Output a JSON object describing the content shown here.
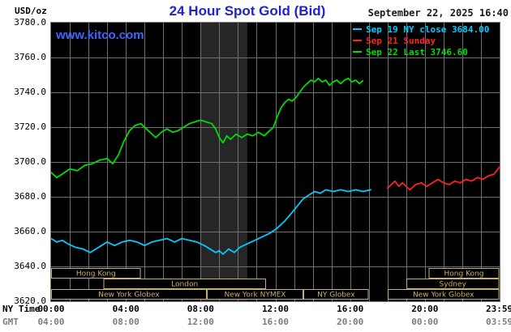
{
  "header": {
    "units_label": "USD/oz",
    "title": "24 Hour Spot Gold (Bid)",
    "title_color": "#2222cc",
    "datetime": "September 22, 2025 16:40",
    "watermark": "www.kitco.com",
    "watermark_color": "#3b66ff"
  },
  "legend": {
    "items": [
      {
        "label": "Sep 19 NY close 3684.00",
        "color": "#00ccff"
      },
      {
        "label": "Sep 21 Sunday",
        "color": "#ff2222"
      },
      {
        "label": "Sep 22 Last 3746.60",
        "color": "#00dd00"
      }
    ]
  },
  "axes": {
    "y_ticks": [
      "3780.0",
      "3760.0",
      "3740.0",
      "3720.0",
      "3700.0",
      "3680.0",
      "3660.0",
      "3640.0",
      "3620.0"
    ],
    "x_ny_label": "NY Time",
    "x_gmt_label": "GMT",
    "x_ticks_ny": [
      "00:00",
      "04:00",
      "08:00",
      "12:00",
      "16:00",
      "20:00",
      "23:59"
    ],
    "x_ticks_gmt": [
      "04:00",
      "08:00",
      "12:00",
      "16:00",
      "20:00",
      "00:00",
      "03:59"
    ],
    "tick_hours": [
      0,
      4,
      8,
      12,
      16,
      20,
      23.983
    ]
  },
  "sessions": {
    "box_color": "#c7b069",
    "rows": [
      [
        {
          "label": "Hong Kong",
          "start": 0,
          "end": 4.8
        },
        {
          "label": "Hong Kong",
          "start": 20.2,
          "end": 23.983
        }
      ],
      [
        {
          "label": "London",
          "start": 2.8,
          "end": 11.5
        },
        {
          "label": "Sydney",
          "start": 19.0,
          "end": 23.983
        }
      ],
      [
        {
          "label": "New York Globex",
          "start": 0,
          "end": 8.33
        },
        {
          "label": "New York NYMEX",
          "start": 8.33,
          "end": 13.5
        },
        {
          "label": "NY Globex",
          "start": 13.5,
          "end": 17.0
        },
        {
          "label": "New York Globex",
          "start": 18.0,
          "end": 23.983
        }
      ]
    ]
  },
  "chart_data": {
    "type": "line",
    "title": "24 Hour Spot Gold (Bid)",
    "ylabel": "USD/oz",
    "ylim": [
      3620,
      3780
    ],
    "xlim_hours": [
      0,
      24
    ],
    "y_grid_step": 20,
    "x_grid_step_hours": 1,
    "plot_bg": "#000000",
    "grid_color": "#6f6f6f",
    "nymex_band": {
      "start_hour": 8.0,
      "end_hour": 10.5,
      "color": "#262626"
    },
    "series": [
      {
        "name": "Sep 19 NY close",
        "key": "sep19-ny-close",
        "color": "#00ccff",
        "last_value": 3684.0,
        "points": [
          [
            0,
            3656
          ],
          [
            0.3,
            3654
          ],
          [
            0.6,
            3655
          ],
          [
            0.9,
            3653
          ],
          [
            1.3,
            3651
          ],
          [
            1.7,
            3650
          ],
          [
            2.1,
            3648
          ],
          [
            2.4,
            3650
          ],
          [
            2.7,
            3652
          ],
          [
            3.0,
            3654
          ],
          [
            3.4,
            3652
          ],
          [
            3.8,
            3654
          ],
          [
            4.2,
            3655
          ],
          [
            4.6,
            3654
          ],
          [
            5.0,
            3652
          ],
          [
            5.4,
            3654
          ],
          [
            5.8,
            3655
          ],
          [
            6.2,
            3656
          ],
          [
            6.6,
            3654
          ],
          [
            7.0,
            3656
          ],
          [
            7.4,
            3655
          ],
          [
            7.8,
            3654
          ],
          [
            8.2,
            3652
          ],
          [
            8.5,
            3650
          ],
          [
            8.8,
            3648
          ],
          [
            9.0,
            3649
          ],
          [
            9.2,
            3647
          ],
          [
            9.5,
            3650
          ],
          [
            9.8,
            3648
          ],
          [
            10.1,
            3651
          ],
          [
            10.5,
            3653
          ],
          [
            10.9,
            3655
          ],
          [
            11.3,
            3657
          ],
          [
            11.7,
            3659
          ],
          [
            12.1,
            3662
          ],
          [
            12.5,
            3666
          ],
          [
            12.9,
            3671
          ],
          [
            13.2,
            3675
          ],
          [
            13.5,
            3679
          ],
          [
            13.8,
            3681
          ],
          [
            14.1,
            3683
          ],
          [
            14.4,
            3682
          ],
          [
            14.7,
            3684
          ],
          [
            15.1,
            3683
          ],
          [
            15.5,
            3684
          ],
          [
            15.9,
            3683
          ],
          [
            16.3,
            3684
          ],
          [
            16.7,
            3683
          ],
          [
            17.1,
            3684
          ]
        ]
      },
      {
        "name": "Sep 21 Sunday",
        "key": "sep21-sunday",
        "color": "#ff2222",
        "points": [
          [
            18.0,
            3685
          ],
          [
            18.2,
            3687
          ],
          [
            18.4,
            3689
          ],
          [
            18.6,
            3686
          ],
          [
            18.8,
            3688
          ],
          [
            19.0,
            3686
          ],
          [
            19.2,
            3684
          ],
          [
            19.5,
            3687
          ],
          [
            19.8,
            3688
          ],
          [
            20.1,
            3686
          ],
          [
            20.4,
            3688
          ],
          [
            20.7,
            3690
          ],
          [
            21.0,
            3688
          ],
          [
            21.3,
            3687
          ],
          [
            21.6,
            3689
          ],
          [
            21.9,
            3688
          ],
          [
            22.2,
            3690
          ],
          [
            22.5,
            3689
          ],
          [
            22.8,
            3691
          ],
          [
            23.1,
            3690
          ],
          [
            23.4,
            3692
          ],
          [
            23.7,
            3693
          ],
          [
            23.983,
            3697
          ]
        ]
      },
      {
        "name": "Sep 22 Last",
        "key": "sep22-last",
        "color": "#00dd00",
        "last_value": 3746.6,
        "points": [
          [
            0,
            3694
          ],
          [
            0.3,
            3691
          ],
          [
            0.6,
            3693
          ],
          [
            1.0,
            3696
          ],
          [
            1.4,
            3695
          ],
          [
            1.8,
            3698
          ],
          [
            2.2,
            3699
          ],
          [
            2.6,
            3701
          ],
          [
            3.0,
            3702
          ],
          [
            3.3,
            3699
          ],
          [
            3.6,
            3704
          ],
          [
            3.9,
            3712
          ],
          [
            4.2,
            3718
          ],
          [
            4.5,
            3721
          ],
          [
            4.8,
            3722
          ],
          [
            5.1,
            3719
          ],
          [
            5.4,
            3716
          ],
          [
            5.6,
            3714
          ],
          [
            5.9,
            3717
          ],
          [
            6.2,
            3719
          ],
          [
            6.5,
            3717
          ],
          [
            6.8,
            3718
          ],
          [
            7.1,
            3720
          ],
          [
            7.4,
            3722
          ],
          [
            7.7,
            3723
          ],
          [
            8.0,
            3724
          ],
          [
            8.3,
            3723
          ],
          [
            8.6,
            3722
          ],
          [
            8.8,
            3719
          ],
          [
            9.0,
            3714
          ],
          [
            9.2,
            3711
          ],
          [
            9.4,
            3715
          ],
          [
            9.6,
            3713
          ],
          [
            9.9,
            3716
          ],
          [
            10.2,
            3714
          ],
          [
            10.5,
            3716
          ],
          [
            10.8,
            3715
          ],
          [
            11.1,
            3717
          ],
          [
            11.4,
            3715
          ],
          [
            11.7,
            3718
          ],
          [
            11.9,
            3720
          ],
          [
            12.1,
            3726
          ],
          [
            12.3,
            3731
          ],
          [
            12.5,
            3734
          ],
          [
            12.7,
            3736
          ],
          [
            12.9,
            3735
          ],
          [
            13.1,
            3737
          ],
          [
            13.3,
            3740
          ],
          [
            13.5,
            3743
          ],
          [
            13.7,
            3745
          ],
          [
            13.9,
            3747
          ],
          [
            14.1,
            3746
          ],
          [
            14.3,
            3748
          ],
          [
            14.5,
            3746
          ],
          [
            14.7,
            3747
          ],
          [
            14.9,
            3744
          ],
          [
            15.1,
            3746
          ],
          [
            15.3,
            3747
          ],
          [
            15.5,
            3745
          ],
          [
            15.7,
            3747
          ],
          [
            15.9,
            3748
          ],
          [
            16.1,
            3746
          ],
          [
            16.3,
            3747
          ],
          [
            16.5,
            3745
          ],
          [
            16.67,
            3746.6
          ]
        ]
      }
    ]
  }
}
